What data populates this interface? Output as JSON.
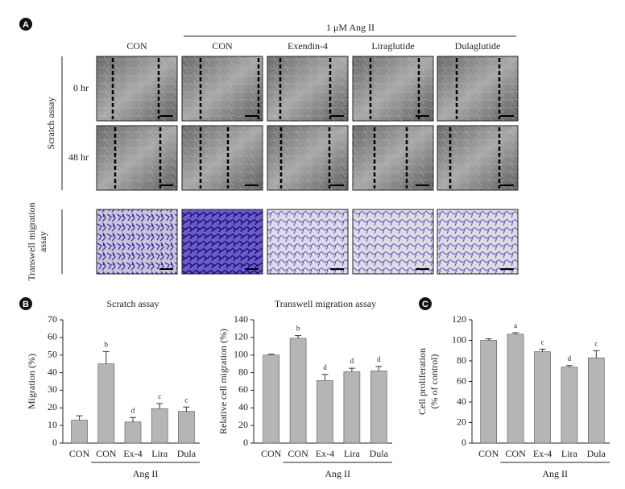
{
  "panel_a": {
    "label": "A",
    "treatment": "1 μM Ang II",
    "columns": [
      "CON",
      "CON",
      "Exendin-4",
      "Liraglutide",
      "Dulaglutide"
    ],
    "scratch_label": "Scratch assay",
    "times": [
      "0 hr",
      "48 hr"
    ],
    "transwell_label": [
      "Transwell migration",
      "assay"
    ]
  },
  "panel_labels": {
    "b": "B",
    "c": "C"
  },
  "chart_data": [
    {
      "type": "bar",
      "title": "Scratch assay",
      "ylabel": [
        "Migration (%)"
      ],
      "categories": [
        "CON",
        "CON",
        "Ex-4",
        "Lira",
        "Dula"
      ],
      "group_label": "Ang II",
      "values": [
        13,
        45,
        12,
        19.5,
        18
      ],
      "errors": [
        2.5,
        7,
        2.5,
        3,
        2.5
      ],
      "significance": [
        null,
        "b",
        "d",
        "c",
        "c"
      ],
      "color": "#b5b5b5",
      "ylim": [
        0,
        70
      ],
      "yticks": [
        0,
        10,
        20,
        30,
        40,
        50,
        60,
        70
      ]
    },
    {
      "type": "bar",
      "title": "Transwell migration assay",
      "ylabel": [
        "Relative cell migration (%)"
      ],
      "categories": [
        "CON",
        "CON",
        "Ex-4",
        "Lira",
        "Dula"
      ],
      "group_label": "Ang II",
      "values": [
        100,
        119,
        71,
        81,
        82
      ],
      "errors": [
        1,
        3,
        7,
        4,
        5
      ],
      "significance": [
        null,
        "b",
        "d",
        "d",
        "d"
      ],
      "color": "#b5b5b5",
      "ylim": [
        0,
        140
      ],
      "yticks": [
        0,
        20,
        40,
        60,
        80,
        100,
        120,
        140
      ]
    },
    {
      "type": "bar",
      "ylabel": [
        "Cell proliferation",
        "(% of control)"
      ],
      "categories": [
        "CON",
        "CON",
        "Ex-4",
        "Lira",
        "Dula"
      ],
      "group_label": "Ang II",
      "values": [
        100,
        106,
        89,
        74,
        83
      ],
      "errors": [
        1.5,
        1.5,
        2.5,
        1.5,
        7
      ],
      "significance": [
        null,
        "a",
        "c",
        "d",
        "c"
      ],
      "color": "#b5b5b5",
      "ylim": [
        0,
        120
      ],
      "yticks": [
        0,
        20,
        40,
        60,
        80,
        100,
        120
      ]
    }
  ]
}
